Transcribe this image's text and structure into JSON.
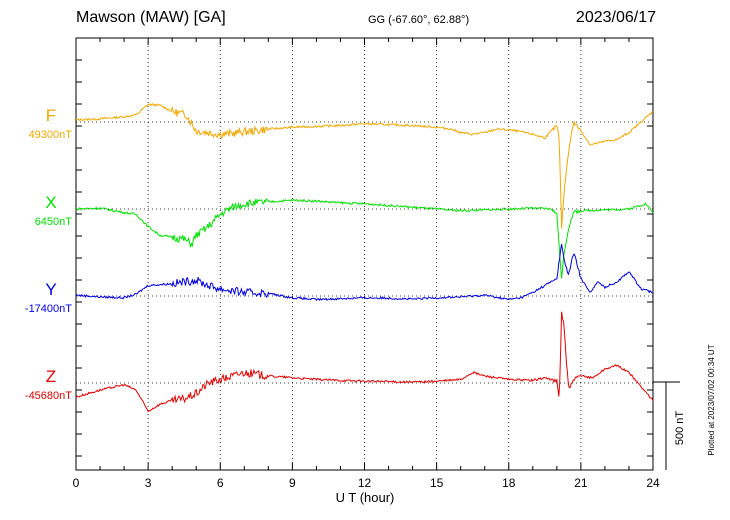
{
  "header": {
    "station": "Mawson (MAW)  [GA]",
    "coords": "GG (-67.60°,  62.88°)",
    "date": "2023/06/17"
  },
  "chart_data": {
    "type": "line",
    "title": "Mawson (MAW)  [GA]",
    "xlabel": "U T (hour)",
    "xlim": [
      0,
      24
    ],
    "xticks": [
      "0",
      "3",
      "6",
      "9",
      "12",
      "15",
      "18",
      "21",
      "24"
    ],
    "grid": true,
    "scale_bar": "500 nT",
    "units": "nT",
    "series": [
      {
        "name": "F",
        "baseline_label": "49300nT",
        "baseline": 49300,
        "color": "#f0a800",
        "points": [
          [
            0,
            49312
          ],
          [
            1,
            49318
          ],
          [
            2,
            49330
          ],
          [
            2.5,
            49340
          ],
          [
            3,
            49400
          ],
          [
            3.5,
            49395
          ],
          [
            4,
            49360
          ],
          [
            4.6,
            49340
          ],
          [
            5,
            49250
          ],
          [
            5.5,
            49240
          ],
          [
            6,
            49230
          ],
          [
            6.5,
            49235
          ],
          [
            7,
            49245
          ],
          [
            7.5,
            49250
          ],
          [
            8,
            49260
          ],
          [
            9,
            49270
          ],
          [
            10,
            49275
          ],
          [
            11,
            49280
          ],
          [
            12,
            49290
          ],
          [
            13,
            49285
          ],
          [
            14,
            49280
          ],
          [
            15,
            49270
          ],
          [
            15.6,
            49260
          ],
          [
            16,
            49240
          ],
          [
            16.5,
            49230
          ],
          [
            17,
            49240
          ],
          [
            17.5,
            49260
          ],
          [
            18,
            49255
          ],
          [
            18.5,
            49245
          ],
          [
            19,
            49230
          ],
          [
            19.5,
            49210
          ],
          [
            20,
            49280
          ],
          [
            20.1,
            49200
          ],
          [
            20.2,
            48700
          ],
          [
            20.3,
            48900
          ],
          [
            20.5,
            49150
          ],
          [
            20.7,
            49300
          ],
          [
            21,
            49250
          ],
          [
            21.4,
            49170
          ],
          [
            22,
            49190
          ],
          [
            22.5,
            49200
          ],
          [
            23,
            49240
          ],
          [
            23.5,
            49300
          ],
          [
            24,
            49360
          ]
        ]
      },
      {
        "name": "X",
        "baseline_label": "6450nT",
        "baseline": 6450,
        "color": "#00e000",
        "points": [
          [
            0,
            6450
          ],
          [
            1,
            6455
          ],
          [
            2,
            6430
          ],
          [
            2.5,
            6420
          ],
          [
            3,
            6350
          ],
          [
            3.5,
            6300
          ],
          [
            4,
            6290
          ],
          [
            4.5,
            6280
          ],
          [
            4.8,
            6250
          ],
          [
            5,
            6300
          ],
          [
            5.5,
            6350
          ],
          [
            6,
            6420
          ],
          [
            6.5,
            6460
          ],
          [
            7,
            6480
          ],
          [
            8,
            6490
          ],
          [
            9,
            6500
          ],
          [
            10,
            6495
          ],
          [
            11,
            6485
          ],
          [
            12,
            6480
          ],
          [
            13,
            6470
          ],
          [
            14,
            6460
          ],
          [
            15,
            6450
          ],
          [
            16,
            6440
          ],
          [
            17,
            6445
          ],
          [
            18,
            6450
          ],
          [
            19,
            6455
          ],
          [
            19.8,
            6450
          ],
          [
            20,
            6420
          ],
          [
            20.2,
            6050
          ],
          [
            20.3,
            6200
          ],
          [
            20.5,
            6350
          ],
          [
            20.7,
            6430
          ],
          [
            21,
            6440
          ],
          [
            22,
            6445
          ],
          [
            23,
            6450
          ],
          [
            23.7,
            6480
          ],
          [
            24,
            6430
          ]
        ]
      },
      {
        "name": "Y",
        "baseline_label": "-17400nT",
        "baseline": -17400,
        "color": "#0000e0",
        "points": [
          [
            0,
            -17395
          ],
          [
            1,
            -17405
          ],
          [
            2,
            -17410
          ],
          [
            2.5,
            -17390
          ],
          [
            3,
            -17340
          ],
          [
            4,
            -17330
          ],
          [
            5,
            -17310
          ],
          [
            5.5,
            -17340
          ],
          [
            6,
            -17360
          ],
          [
            7,
            -17380
          ],
          [
            8,
            -17385
          ],
          [
            9,
            -17410
          ],
          [
            10,
            -17420
          ],
          [
            11,
            -17415
          ],
          [
            12,
            -17410
          ],
          [
            13,
            -17412
          ],
          [
            14,
            -17418
          ],
          [
            15,
            -17410
          ],
          [
            16,
            -17405
          ],
          [
            17,
            -17395
          ],
          [
            18,
            -17420
          ],
          [
            18.5,
            -17410
          ],
          [
            19,
            -17380
          ],
          [
            19.5,
            -17340
          ],
          [
            20,
            -17300
          ],
          [
            20.2,
            -17100
          ],
          [
            20.3,
            -17200
          ],
          [
            20.5,
            -17280
          ],
          [
            20.7,
            -17150
          ],
          [
            21,
            -17300
          ],
          [
            21.4,
            -17380
          ],
          [
            21.7,
            -17320
          ],
          [
            22,
            -17350
          ],
          [
            22.5,
            -17320
          ],
          [
            23,
            -17260
          ],
          [
            23.5,
            -17360
          ],
          [
            24,
            -17380
          ]
        ]
      },
      {
        "name": "Z",
        "baseline_label": "-45680nT",
        "baseline": -45680,
        "color": "#e00000",
        "points": [
          [
            0,
            -45760
          ],
          [
            1,
            -45720
          ],
          [
            2,
            -45690
          ],
          [
            2.5,
            -45720
          ],
          [
            3,
            -45840
          ],
          [
            3.5,
            -45800
          ],
          [
            4,
            -45780
          ],
          [
            4.5,
            -45770
          ],
          [
            5,
            -45740
          ],
          [
            5.5,
            -45680
          ],
          [
            6,
            -45660
          ],
          [
            6.5,
            -45640
          ],
          [
            7,
            -45620
          ],
          [
            8,
            -45640
          ],
          [
            9,
            -45650
          ],
          [
            10,
            -45660
          ],
          [
            11,
            -45665
          ],
          [
            12,
            -45670
          ],
          [
            13,
            -45672
          ],
          [
            14,
            -45675
          ],
          [
            15,
            -45670
          ],
          [
            16,
            -45660
          ],
          [
            16.5,
            -45620
          ],
          [
            17,
            -45640
          ],
          [
            18,
            -45660
          ],
          [
            19,
            -45665
          ],
          [
            19.5,
            -45650
          ],
          [
            20,
            -45670
          ],
          [
            20.1,
            -45780
          ],
          [
            20.2,
            -45280
          ],
          [
            20.3,
            -45350
          ],
          [
            20.4,
            -45560
          ],
          [
            20.5,
            -45720
          ],
          [
            20.7,
            -45660
          ],
          [
            21,
            -45640
          ],
          [
            21.5,
            -45650
          ],
          [
            22,
            -45600
          ],
          [
            22.5,
            -45580
          ],
          [
            23,
            -45620
          ],
          [
            23.5,
            -45700
          ],
          [
            24,
            -45780
          ]
        ]
      }
    ]
  },
  "footer": {
    "plotted": "Plotted at 2023/07/02 00:34 UT"
  }
}
